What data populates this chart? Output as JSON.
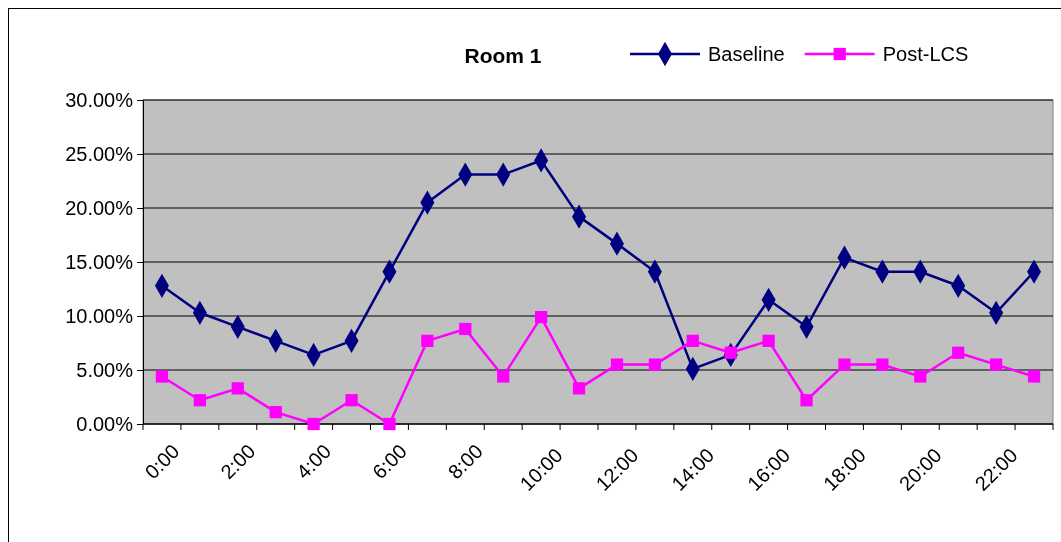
{
  "chart_data": {
    "type": "line",
    "title": "Room 1",
    "categories": [
      "0:00",
      null,
      "2:00",
      null,
      "4:00",
      null,
      "6:00",
      null,
      "8:00",
      null,
      "10:00",
      null,
      "12:00",
      null,
      "14:00",
      null,
      "16:00",
      null,
      "18:00",
      null,
      "20:00",
      null,
      "22:00",
      null
    ],
    "series": [
      {
        "name": "Baseline",
        "color": "#000080",
        "marker": "diamond",
        "values": [
          12.8,
          10.3,
          9.0,
          7.7,
          6.4,
          7.7,
          14.1,
          20.5,
          23.1,
          23.1,
          24.4,
          19.2,
          16.7,
          14.1,
          5.1,
          6.4,
          11.5,
          9.0,
          15.4,
          14.1,
          14.1,
          12.8,
          10.3,
          14.1
        ]
      },
      {
        "name": "Post-LCS",
        "color": "#ff00ff",
        "marker": "square",
        "values": [
          4.4,
          2.2,
          3.3,
          1.1,
          0,
          2.2,
          0,
          7.7,
          8.8,
          4.4,
          9.9,
          3.3,
          5.5,
          5.5,
          7.7,
          6.6,
          7.7,
          2.2,
          5.5,
          5.5,
          4.4,
          6.6,
          5.5,
          4.4
        ]
      }
    ],
    "ylim": [
      0,
      30
    ],
    "yticks": [
      {
        "value": 0,
        "label": "0.00%"
      },
      {
        "value": 5,
        "label": "5.00%"
      },
      {
        "value": 10,
        "label": "10.00%"
      },
      {
        "value": 15,
        "label": "15.00%"
      },
      {
        "value": 20,
        "label": "20.00%"
      },
      {
        "value": 25,
        "label": "25.00%"
      },
      {
        "value": 30,
        "label": "30.00%"
      }
    ],
    "grid": "y",
    "legend": "top right"
  }
}
